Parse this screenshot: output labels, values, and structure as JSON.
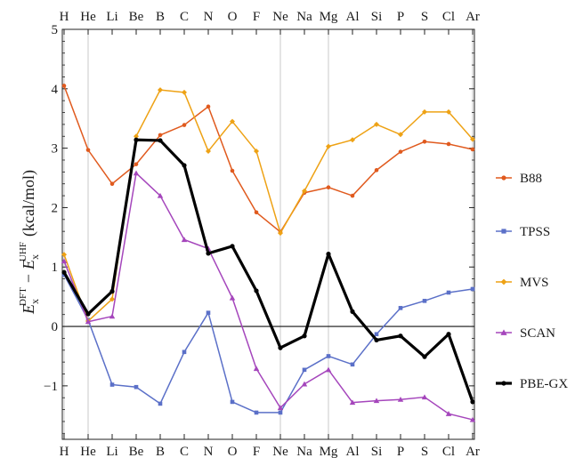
{
  "chart_data": {
    "type": "line",
    "categories": [
      "H",
      "He",
      "Li",
      "Be",
      "B",
      "C",
      "N",
      "O",
      "F",
      "Ne",
      "Na",
      "Mg",
      "Al",
      "Si",
      "P",
      "S",
      "Cl",
      "Ar"
    ],
    "ylabel": "E_x^DFT − E_x^UHF (kcal/mol)",
    "ylabel_parts": {
      "e1": "E",
      "sub1": "x",
      "sup1": "DFT",
      "minus": "−",
      "e2": "E",
      "sub2": "x",
      "sup2": "UHF",
      "units": "(kcal/mol)"
    },
    "ylim": [
      -1.9,
      5
    ],
    "yticks": [
      -1,
      0,
      1,
      2,
      3,
      4,
      5
    ],
    "ytick_labels": [
      "−1",
      "0",
      "1",
      "2",
      "3",
      "4",
      "5"
    ],
    "grid": "vertical lines at H, He, Ne, Mg, Ar",
    "legend_position": "right",
    "series": [
      {
        "name": "B88",
        "color": "#e05a1e",
        "marker": "circle",
        "values": [
          4.05,
          2.97,
          2.4,
          2.73,
          3.22,
          3.39,
          3.7,
          2.62,
          1.92,
          1.59,
          2.25,
          2.34,
          2.2,
          2.63,
          2.94,
          3.11,
          3.07,
          2.98
        ]
      },
      {
        "name": "TPSS",
        "color": "#5b70c8",
        "marker": "square",
        "values": [
          0.87,
          0.11,
          -0.98,
          -1.02,
          -1.3,
          -0.43,
          0.23,
          -1.27,
          -1.45,
          -1.45,
          -0.73,
          -0.5,
          -0.64,
          -0.13,
          0.31,
          0.43,
          0.57,
          0.63
        ]
      },
      {
        "name": "MVS",
        "color": "#eea215",
        "marker": "diamond",
        "values": [
          1.21,
          0.09,
          0.46,
          3.2,
          3.98,
          3.94,
          2.95,
          3.45,
          2.95,
          1.57,
          2.28,
          3.03,
          3.14,
          3.4,
          3.23,
          3.61,
          3.61,
          3.15
        ]
      },
      {
        "name": "SCAN",
        "color": "#a546bc",
        "marker": "triangle",
        "values": [
          1.1,
          0.08,
          0.17,
          2.58,
          2.2,
          1.46,
          1.31,
          0.48,
          -0.71,
          -1.37,
          -0.97,
          -0.73,
          -1.28,
          -1.25,
          -1.23,
          -1.19,
          -1.47,
          -1.57
        ]
      },
      {
        "name": "PBE-GX",
        "color": "#000000",
        "marker": "circle",
        "values": [
          0.91,
          0.21,
          0.59,
          3.14,
          3.13,
          2.71,
          1.23,
          1.35,
          0.6,
          -0.36,
          -0.16,
          1.22,
          0.25,
          -0.23,
          -0.16,
          -0.51,
          -0.13,
          -1.27
        ]
      }
    ]
  }
}
